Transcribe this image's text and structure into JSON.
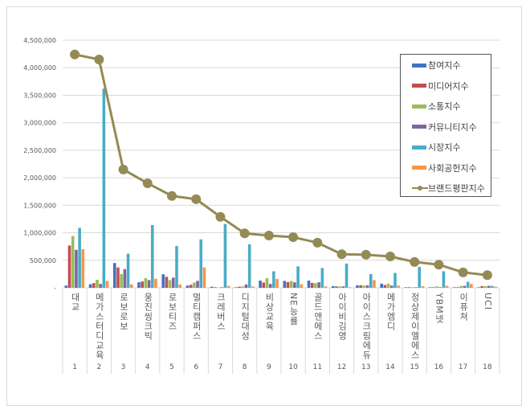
{
  "chart_data": {
    "type": "bar",
    "categories": [
      "대교",
      "메가스터디교육",
      "로보로보",
      "웅진씽크빅",
      "로보티즈",
      "멀티캠퍼스",
      "크레버스",
      "디지털대성",
      "비상교육",
      "NE능률",
      "골드앤에스",
      "아이비김영",
      "아이스크림에듀",
      "메가엠디",
      "정상제이엘에스",
      "YBM넷",
      "이퓨쳐",
      "UCI"
    ],
    "ranks": [
      "1",
      "2",
      "3",
      "4",
      "5",
      "6",
      "7",
      "8",
      "9",
      "10",
      "11",
      "12",
      "13",
      "14",
      "15",
      "16",
      "17",
      "18"
    ],
    "ylim": [
      0,
      4500000
    ],
    "yticks": [
      "-",
      "500,000",
      "1,000,000",
      "1,500,000",
      "2,000,000",
      "2,500,000",
      "3,000,000",
      "3,500,000",
      "4,000,000",
      "4,500,000"
    ],
    "grid": true,
    "legend": "right",
    "series": [
      {
        "name": "참여지수",
        "type": "bar",
        "color": "#4472c4",
        "values": [
          40000,
          65000,
          450000,
          100000,
          245000,
          40000,
          20000,
          10000,
          130000,
          125000,
          130000,
          30000,
          45000,
          75000,
          10000,
          10000,
          10000,
          10000
        ]
      },
      {
        "name": "미디어지수",
        "type": "bar",
        "color": "#c0504d",
        "values": [
          768000,
          85000,
          370000,
          115000,
          200000,
          55000,
          10000,
          20000,
          95000,
          105000,
          90000,
          25000,
          45000,
          50000,
          10000,
          10000,
          10000,
          30000
        ]
      },
      {
        "name": "소통지수",
        "type": "bar",
        "color": "#9bbb59",
        "values": [
          940000,
          145000,
          250000,
          175000,
          140000,
          95000,
          5000,
          25000,
          175000,
          125000,
          85000,
          25000,
          40000,
          75000,
          10000,
          25000,
          35000,
          30000
        ]
      },
      {
        "name": "커뮤니티지수",
        "type": "bar",
        "color": "#8064a2",
        "values": [
          690000,
          70000,
          340000,
          140000,
          185000,
          125000,
          10000,
          60000,
          70000,
          100000,
          100000,
          25000,
          45000,
          40000,
          10000,
          10000,
          35000,
          35000
        ]
      },
      {
        "name": "시장지수",
        "type": "bar",
        "color": "#4bacc6",
        "values": [
          1090000,
          3620000,
          620000,
          1140000,
          760000,
          880000,
          1160000,
          790000,
          300000,
          390000,
          360000,
          440000,
          250000,
          270000,
          380000,
          300000,
          110000,
          35000
        ]
      },
      {
        "name": "사회공헌지수",
        "type": "bar",
        "color": "#f79646",
        "values": [
          700000,
          125000,
          60000,
          165000,
          60000,
          370000,
          35000,
          25000,
          160000,
          65000,
          25000,
          10000,
          140000,
          40000,
          30000,
          35000,
          70000,
          20000
        ]
      },
      {
        "name": "브랜드평판지수",
        "type": "line",
        "color": "#948a54",
        "values": [
          4240000,
          4150000,
          2150000,
          1900000,
          1670000,
          1610000,
          1290000,
          990000,
          950000,
          920000,
          820000,
          610000,
          600000,
          570000,
          470000,
          420000,
          280000,
          230000
        ]
      }
    ]
  }
}
